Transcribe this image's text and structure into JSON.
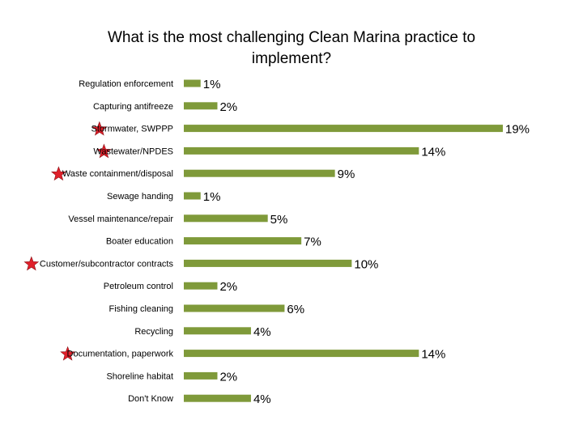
{
  "chart_data": {
    "type": "bar",
    "orientation": "horizontal",
    "title": "What is the most challenging Clean Marina practice to implement?",
    "categories": [
      "Regulation enforcement",
      "Capturing antifreeze",
      "Stormwater, SWPPP",
      "Wastewater/NPDES",
      "Waste containment/disposal",
      "Sewage handing",
      "Vessel maintenance/repair",
      "Boater education",
      "Customer/subcontractor contracts",
      "Petroleum control",
      "Fishing cleaning",
      "Recycling",
      "Documentation, paperwork",
      "Shoreline habitat",
      "Don't Know"
    ],
    "values": [
      1,
      2,
      19,
      14,
      9,
      1,
      5,
      7,
      10,
      2,
      6,
      4,
      14,
      2,
      4
    ],
    "value_labels": [
      "1%",
      "2%",
      "19%",
      "14%",
      "9%",
      "1%",
      "5%",
      "7%",
      "10%",
      "2%",
      "6%",
      "4%",
      "14%",
      "2%",
      "4%"
    ],
    "starred": [
      false,
      false,
      true,
      true,
      true,
      false,
      false,
      false,
      true,
      false,
      false,
      false,
      true,
      false,
      false
    ],
    "bar_color": "#7f9a3a",
    "star_color": "#e0202a",
    "xlim": [
      0,
      19
    ],
    "grid": false,
    "legend": "none"
  }
}
